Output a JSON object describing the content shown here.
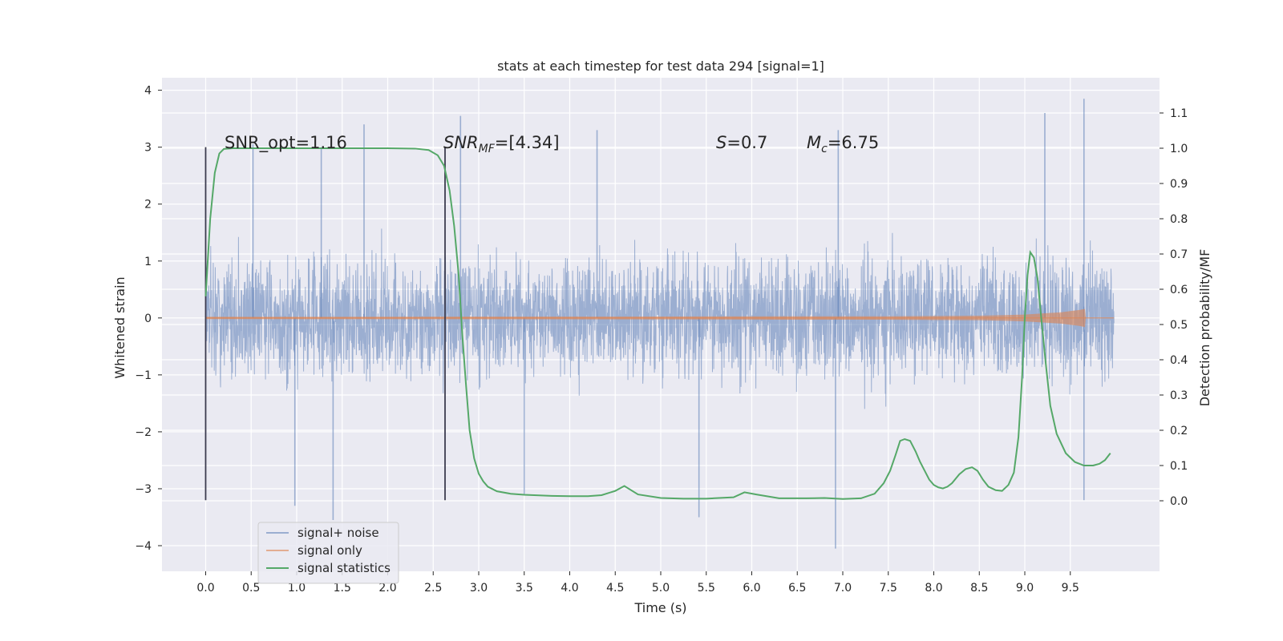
{
  "chart_data": {
    "type": "line",
    "title": "stats at each timestep for test data 294 [signal=1]",
    "xlabel": "Time (s)",
    "ylabel": "Whitened strain",
    "ylabel_right": "Detection probability/MF",
    "xlim": [
      -0.48,
      10.48
    ],
    "ylim": [
      -4.45,
      4.22
    ],
    "ylim_right": [
      -0.2,
      1.2
    ],
    "x_ticks": [
      "0.0",
      "0.5",
      "1.0",
      "1.5",
      "2.0",
      "2.5",
      "3.0",
      "3.5",
      "4.0",
      "4.5",
      "5.0",
      "5.5",
      "6.0",
      "6.5",
      "7.0",
      "7.5",
      "8.0",
      "8.5",
      "9.0",
      "9.5"
    ],
    "x_tick_values": [
      0,
      0.5,
      1,
      1.5,
      2,
      2.5,
      3,
      3.5,
      4,
      4.5,
      5,
      5.5,
      6,
      6.5,
      7,
      7.5,
      8,
      8.5,
      9,
      9.5
    ],
    "y_ticks": [
      "4",
      "3",
      "2",
      "1",
      "0",
      "−1",
      "−2",
      "−3",
      "−4"
    ],
    "y_tick_values": [
      4,
      3,
      2,
      1,
      0,
      -1,
      -2,
      -3,
      -4
    ],
    "y_right_ticks": [
      "1.1",
      "1.0",
      "0.9",
      "0.8",
      "0.7",
      "0.6",
      "0.5",
      "0.4",
      "0.3",
      "0.2",
      "0.1",
      "0.0"
    ],
    "y_right_tick_values": [
      1.1,
      1.0,
      0.9,
      0.8,
      0.7,
      0.6,
      0.5,
      0.4,
      0.3,
      0.2,
      0.1,
      0.0
    ],
    "grid": true,
    "legend_position": "lower-left",
    "annotations": {
      "snr_opt": "SNR_opt=1.16",
      "snr_mf_main": "SNR",
      "snr_mf_sub": "MF",
      "snr_mf_value": "=[4.34]",
      "s_main": "S",
      "s_value": "=0.7",
      "mc_main": "M",
      "mc_sub": "c",
      "mc_value": "=6.75"
    },
    "markers": [
      {
        "x": 0.0,
        "y_top": 3.0,
        "y_bottom": -3.2
      },
      {
        "x": 2.63,
        "y_top": 3.0,
        "y_bottom": -3.2
      }
    ],
    "series": [
      {
        "name": "signal+ noise",
        "color": "#4c72b0",
        "opacity": 0.5,
        "x_range": [
          0,
          9.98
        ],
        "envelope_abs_typical": 1.9,
        "envelope_abs_max": 3.85,
        "peaks": [
          {
            "x": 0.52,
            "y": 3.05
          },
          {
            "x": 1.27,
            "y": 3.0
          },
          {
            "x": 1.74,
            "y": 3.4
          },
          {
            "x": 2.8,
            "y": 3.55
          },
          {
            "x": 4.3,
            "y": 3.3
          },
          {
            "x": 6.95,
            "y": 3.3
          },
          {
            "x": 9.22,
            "y": 3.6
          },
          {
            "x": 9.65,
            "y": 3.85
          },
          {
            "x": 1.4,
            "y": -3.55
          },
          {
            "x": 5.42,
            "y": -3.5
          },
          {
            "x": 6.92,
            "y": -4.05
          },
          {
            "x": 0.98,
            "y": -3.3
          },
          {
            "x": 3.5,
            "y": -3.1
          },
          {
            "x": 9.65,
            "y": -3.2
          }
        ]
      },
      {
        "name": "signal only",
        "color": "#dd8452",
        "x": [
          0,
          5.0,
          6.5,
          7.5,
          8.0,
          8.5,
          8.8,
          9.0,
          9.2,
          9.4,
          9.5,
          9.6,
          9.66,
          9.67
        ],
        "amplitude": [
          0.02,
          0.025,
          0.03,
          0.03,
          0.035,
          0.04,
          0.05,
          0.06,
          0.08,
          0.1,
          0.12,
          0.14,
          0.16,
          0.0
        ]
      },
      {
        "name": "signal statistics",
        "color": "#55a868",
        "axis": "right",
        "x": [
          0.0,
          0.05,
          0.1,
          0.15,
          0.2,
          0.3,
          0.5,
          1.0,
          1.5,
          2.0,
          2.3,
          2.45,
          2.55,
          2.62,
          2.68,
          2.73,
          2.78,
          2.82,
          2.86,
          2.9,
          2.95,
          3.0,
          3.05,
          3.1,
          3.2,
          3.35,
          3.5,
          3.8,
          4.0,
          4.2,
          4.35,
          4.5,
          4.6,
          4.75,
          5.0,
          5.25,
          5.5,
          5.8,
          5.92,
          6.05,
          6.3,
          6.6,
          6.8,
          7.0,
          7.2,
          7.35,
          7.45,
          7.52,
          7.58,
          7.63,
          7.68,
          7.74,
          7.8,
          7.85,
          7.9,
          7.95,
          8.0,
          8.05,
          8.1,
          8.15,
          8.2,
          8.28,
          8.35,
          8.42,
          8.48,
          8.54,
          8.6,
          8.68,
          8.75,
          8.82,
          8.88,
          8.93,
          8.97,
          9.0,
          9.03,
          9.06,
          9.1,
          9.14,
          9.18,
          9.23,
          9.28,
          9.35,
          9.45,
          9.55,
          9.65,
          9.75,
          9.82,
          9.88,
          9.94
        ],
        "values": [
          0.58,
          0.8,
          0.93,
          0.985,
          0.998,
          1.0,
          1.0,
          1.0,
          1.0,
          1.0,
          0.999,
          0.995,
          0.98,
          0.95,
          0.88,
          0.78,
          0.64,
          0.47,
          0.33,
          0.2,
          0.12,
          0.077,
          0.055,
          0.04,
          0.027,
          0.02,
          0.017,
          0.014,
          0.013,
          0.013,
          0.016,
          0.028,
          0.042,
          0.018,
          0.008,
          0.006,
          0.006,
          0.01,
          0.024,
          0.018,
          0.007,
          0.007,
          0.008,
          0.005,
          0.007,
          0.02,
          0.05,
          0.085,
          0.13,
          0.17,
          0.175,
          0.17,
          0.14,
          0.11,
          0.085,
          0.06,
          0.045,
          0.038,
          0.035,
          0.04,
          0.05,
          0.075,
          0.09,
          0.095,
          0.085,
          0.06,
          0.04,
          0.03,
          0.028,
          0.045,
          0.08,
          0.18,
          0.35,
          0.52,
          0.64,
          0.705,
          0.69,
          0.63,
          0.52,
          0.39,
          0.27,
          0.19,
          0.135,
          0.11,
          0.1,
          0.1,
          0.105,
          0.115,
          0.135
        ]
      }
    ]
  }
}
